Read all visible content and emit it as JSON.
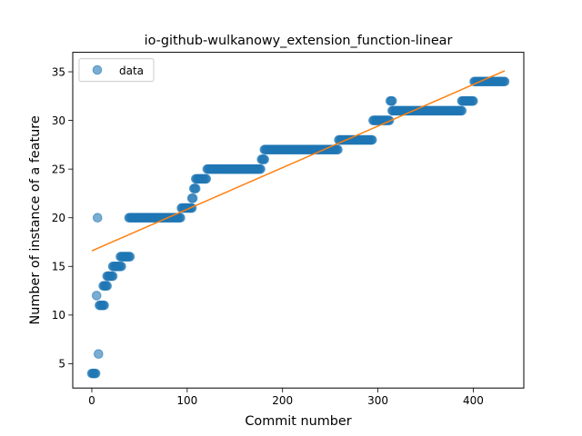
{
  "chart_data": {
    "type": "scatter",
    "title": "io-github-wulkanowy_extension_function-linear",
    "xlabel": "Commit number",
    "ylabel": "Number of instance of a feature",
    "xlim": [
      -20,
      453
    ],
    "ylim": [
      2.5,
      37
    ],
    "xticks": [
      0,
      100,
      200,
      300,
      400
    ],
    "yticks": [
      5,
      10,
      15,
      20,
      25,
      30,
      35
    ],
    "legend": {
      "label": "data",
      "position": "top-left"
    },
    "colors": {
      "points": "#1f77b4",
      "fit_line": "#ff7f0e"
    },
    "fit_line": {
      "x": [
        0,
        433
      ],
      "y": [
        16.6,
        35.1
      ]
    },
    "series": [
      {
        "name": "data",
        "segments": [
          {
            "x_start": 0,
            "x_end": 4,
            "y": 4
          },
          {
            "x_start": 5,
            "x_end": 5,
            "y": 12
          },
          {
            "x_start": 6,
            "x_end": 6,
            "y": 20
          },
          {
            "x_start": 7,
            "x_end": 7,
            "y": 6
          },
          {
            "x_start": 8,
            "x_end": 13,
            "y": 11
          },
          {
            "x_start": 12,
            "x_end": 16,
            "y": 13
          },
          {
            "x_start": 16,
            "x_end": 22,
            "y": 14
          },
          {
            "x_start": 22,
            "x_end": 31,
            "y": 15
          },
          {
            "x_start": 30,
            "x_end": 40,
            "y": 16
          },
          {
            "x_start": 39,
            "x_end": 93,
            "y": 20
          },
          {
            "x_start": 94,
            "x_end": 105,
            "y": 21
          },
          {
            "x_start": 105,
            "x_end": 106,
            "y": 22
          },
          {
            "x_start": 107,
            "x_end": 109,
            "y": 23
          },
          {
            "x_start": 109,
            "x_end": 120,
            "y": 24
          },
          {
            "x_start": 121,
            "x_end": 177,
            "y": 25
          },
          {
            "x_start": 178,
            "x_end": 181,
            "y": 26
          },
          {
            "x_start": 181,
            "x_end": 258,
            "y": 27
          },
          {
            "x_start": 259,
            "x_end": 294,
            "y": 28
          },
          {
            "x_start": 295,
            "x_end": 312,
            "y": 30
          },
          {
            "x_start": 313,
            "x_end": 315,
            "y": 32
          },
          {
            "x_start": 315,
            "x_end": 388,
            "y": 31
          },
          {
            "x_start": 388,
            "x_end": 400,
            "y": 32
          },
          {
            "x_start": 401,
            "x_end": 433,
            "y": 34
          }
        ]
      }
    ]
  }
}
